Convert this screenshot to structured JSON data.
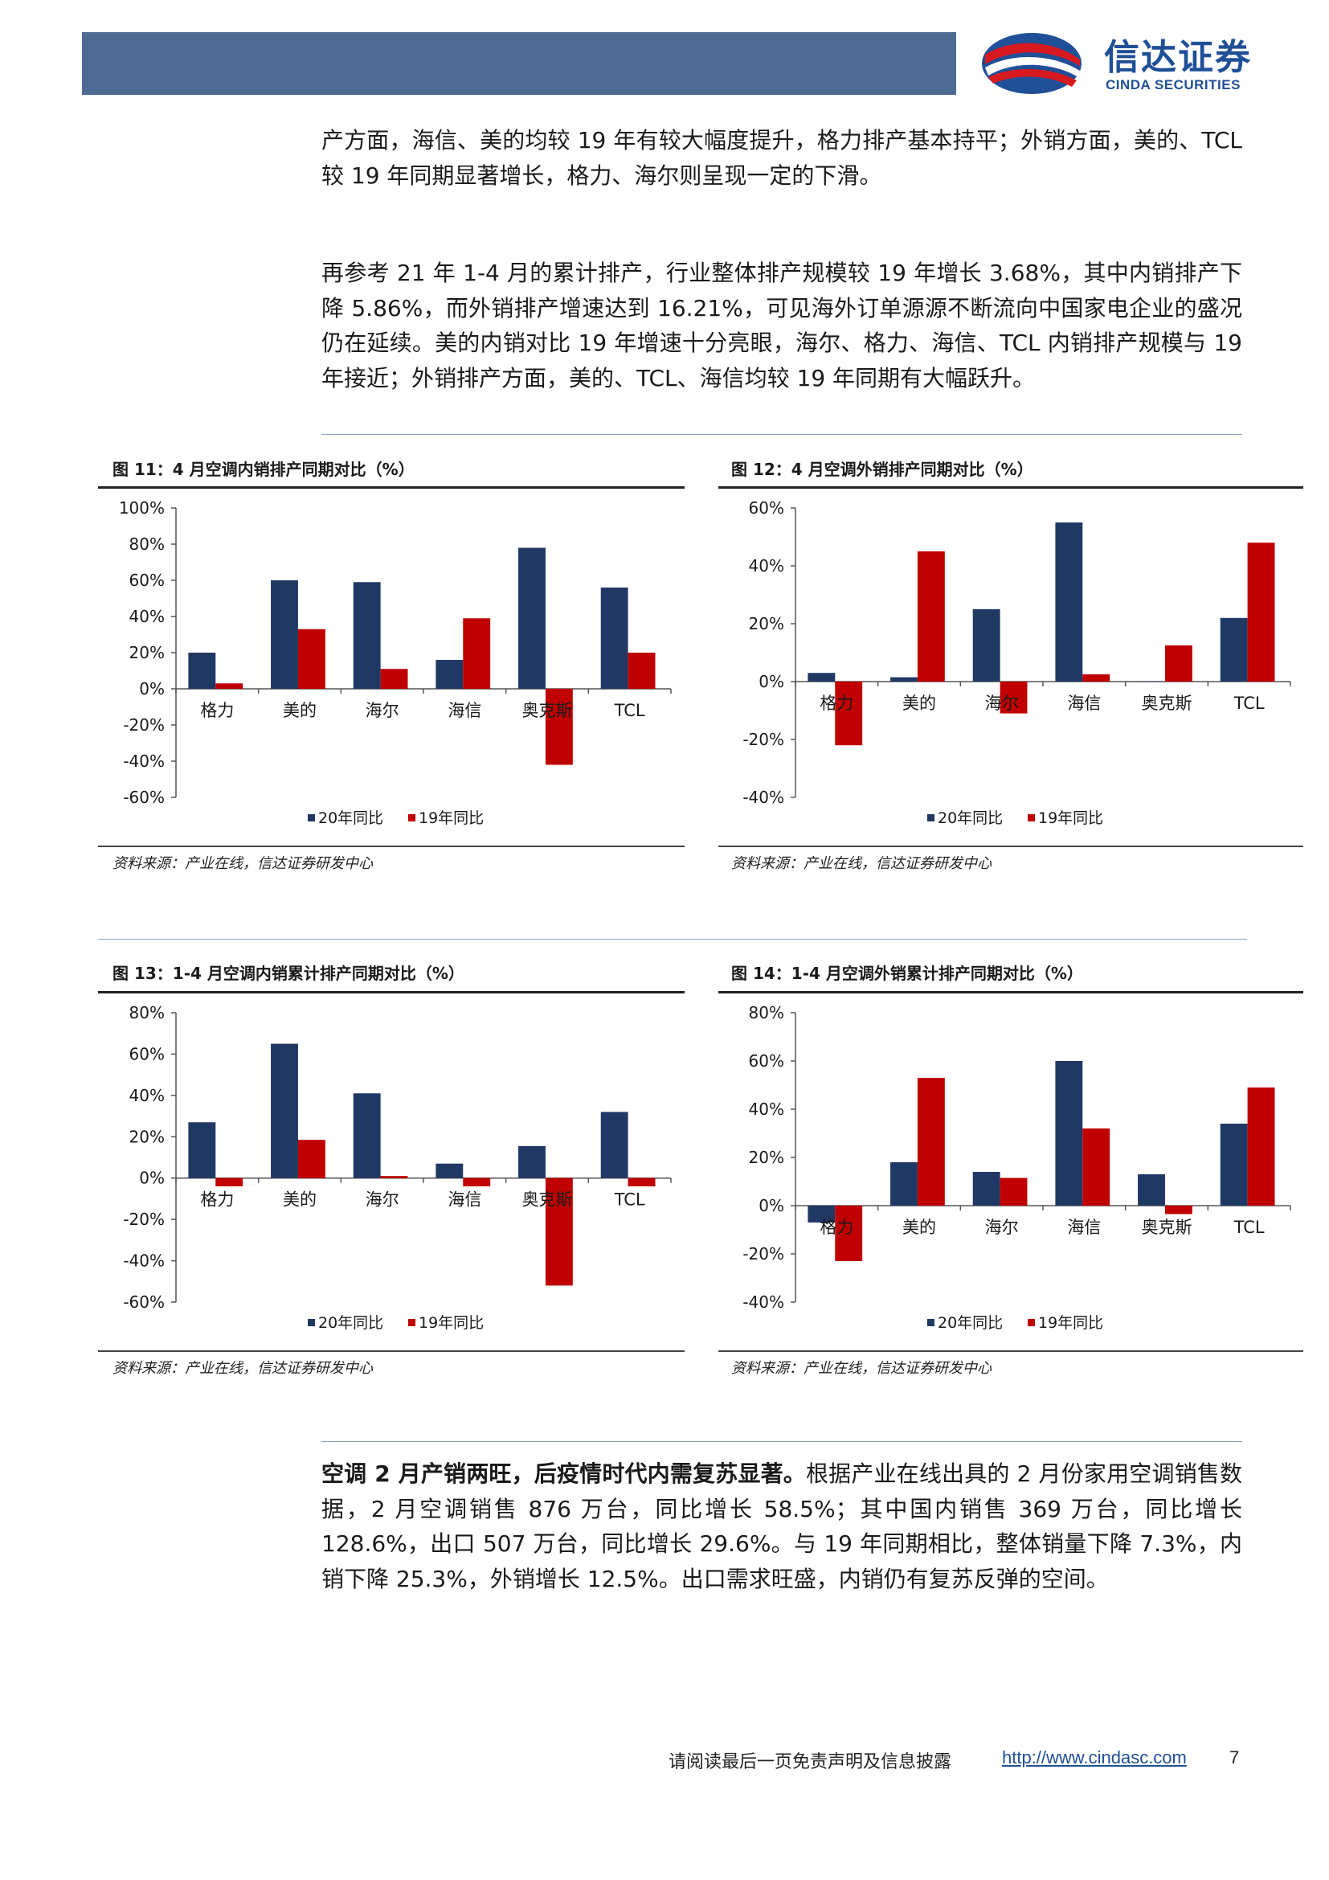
{
  "header": {
    "logo_cn": "信达证券",
    "logo_en": "CINDA SECURITIES",
    "brand_color": "#1f4f97",
    "bar_color": "#4e6b93"
  },
  "paragraphs": {
    "p1": "产方面，海信、美的均较 19 年有较大幅度提升，格力排产基本持平；外销方面，美的、TCL 较 19 年同期显著增长，格力、海尔则呈现一定的下滑。",
    "p2": "再参考 21 年 1-4 月的累计排产，行业整体排产规模较 19 年增长 3.68%，其中内销排产下降 5.86%，而外销排产增速达到 16.21%，可见海外订单源源不断流向中国家电企业的盛况仍在延续。美的内销对比 19 年增速十分亮眼，海尔、格力、海信、TCL 内销排产规模与 19 年接近；外销排产方面，美的、TCL、海信均较 19 年同期有大幅跃升。",
    "p3_lead": "空调 2 月产销两旺，后疫情时代内需复苏显著。",
    "p3_rest": "根据产业在线出具的 2 月份家用空调销售数据，2 月空调销售 876 万台，同比增长 58.5%；其中国内销售 369 万台，同比增长 128.6%，出口 507 万台，同比增长 29.6%。与 19 年同期相比，整体销量下降 7.3%，内销下降 25.3%，外销增长 12.5%。出口需求旺盛，内销仍有复苏反弹的空间。"
  },
  "figures": [
    {
      "title": "图 11：4 月空调内销排产同期对比（%）",
      "source": "资料来源：产业在线，信达证券研发中心"
    },
    {
      "title": "图 12：4 月空调外销排产同期对比（%）",
      "source": "资料来源：产业在线，信达证券研发中心"
    },
    {
      "title": "图 13：1-4 月空调内销累计排产同期对比（%）",
      "source": "资料来源：产业在线，信达证券研发中心"
    },
    {
      "title": "图 14：1-4 月空调外销累计排产同期对比（%）",
      "source": "资料来源：产业在线，信达证券研发中心"
    }
  ],
  "chart_data": [
    {
      "type": "bar",
      "categories": [
        "格力",
        "美的",
        "海尔",
        "海信",
        "奥克斯",
        "TCL"
      ],
      "series": [
        {
          "name": "20年同比",
          "values": [
            20,
            60,
            59,
            16,
            78,
            56
          ],
          "color": "#203864"
        },
        {
          "name": "19年同比",
          "values": [
            3,
            33,
            11,
            39,
            -42,
            20
          ],
          "color": "#c00000"
        }
      ],
      "ylim": [
        -60,
        100
      ],
      "yticks": [
        "100%",
        "80%",
        "60%",
        "40%",
        "20%",
        "0%",
        "-20%",
        "-40%",
        "-60%"
      ],
      "legend": "bottom",
      "grid": false
    },
    {
      "type": "bar",
      "categories": [
        "格力",
        "美的",
        "海尔",
        "海信",
        "奥克斯",
        "TCL"
      ],
      "series": [
        {
          "name": "20年同比",
          "values": [
            3,
            1.5,
            25,
            55,
            0,
            22
          ],
          "color": "#203864"
        },
        {
          "name": "19年同比",
          "values": [
            -22,
            45,
            -11,
            2.5,
            12.5,
            48
          ],
          "color": "#c00000"
        }
      ],
      "ylim": [
        -40,
        60
      ],
      "yticks": [
        "60%",
        "40%",
        "20%",
        "0%",
        "-20%",
        "-40%"
      ],
      "legend": "bottom",
      "grid": false
    },
    {
      "type": "bar",
      "categories": [
        "格力",
        "美的",
        "海尔",
        "海信",
        "奥克斯",
        "TCL"
      ],
      "series": [
        {
          "name": "20年同比",
          "values": [
            27,
            65,
            41,
            7,
            15.5,
            32
          ],
          "color": "#203864"
        },
        {
          "name": "19年同比",
          "values": [
            -4,
            18.5,
            1,
            -4,
            -52,
            -4
          ],
          "color": "#c00000"
        }
      ],
      "ylim": [
        -60,
        80
      ],
      "yticks": [
        "80%",
        "60%",
        "40%",
        "20%",
        "0%",
        "-20%",
        "-40%",
        "-60%"
      ],
      "legend": "bottom",
      "grid": false
    },
    {
      "type": "bar",
      "categories": [
        "格力",
        "美的",
        "海尔",
        "海信",
        "奥克斯",
        "TCL"
      ],
      "series": [
        {
          "name": "20年同比",
          "values": [
            -7,
            18,
            14,
            60,
            13,
            34
          ],
          "color": "#203864"
        },
        {
          "name": "19年同比",
          "values": [
            -23,
            53,
            11.5,
            32,
            -3.5,
            49
          ],
          "color": "#c00000"
        }
      ],
      "ylim": [
        -40,
        80
      ],
      "yticks": [
        "80%",
        "60%",
        "40%",
        "20%",
        "0%",
        "-20%",
        "-40%"
      ],
      "legend": "bottom",
      "grid": false
    }
  ],
  "footer": {
    "disclaimer": "请阅读最后一页免责声明及信息披露",
    "link": "http://www.cindasc.com",
    "page": "7"
  }
}
